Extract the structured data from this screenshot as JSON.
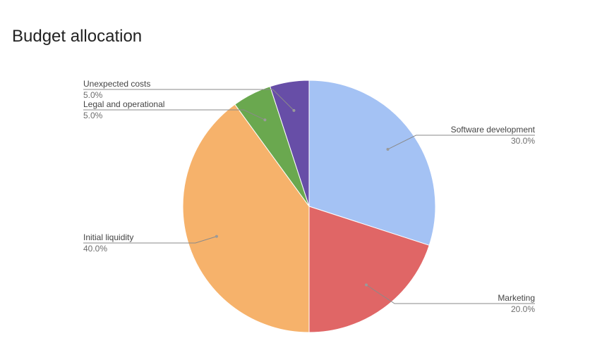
{
  "title": "Budget allocation",
  "chart_data": {
    "type": "pie",
    "title": "Budget allocation",
    "slices": [
      {
        "label": "Software development",
        "value": 30.0,
        "value_label": "30.0%",
        "color": "#a4c2f4"
      },
      {
        "label": "Marketing",
        "value": 20.0,
        "value_label": "20.0%",
        "color": "#e06666"
      },
      {
        "label": "Initial liquidity",
        "value": 40.0,
        "value_label": "40.0%",
        "color": "#f6b26b"
      },
      {
        "label": "Legal and operational",
        "value": 5.0,
        "value_label": "5.0%",
        "color": "#6aa84f"
      },
      {
        "label": "Unexpected costs",
        "value": 5.0,
        "value_label": "5.0%",
        "color": "#674ea7"
      }
    ],
    "start_angle": "12 o'clock, clockwise",
    "legend": "none (leader-line labels)"
  }
}
